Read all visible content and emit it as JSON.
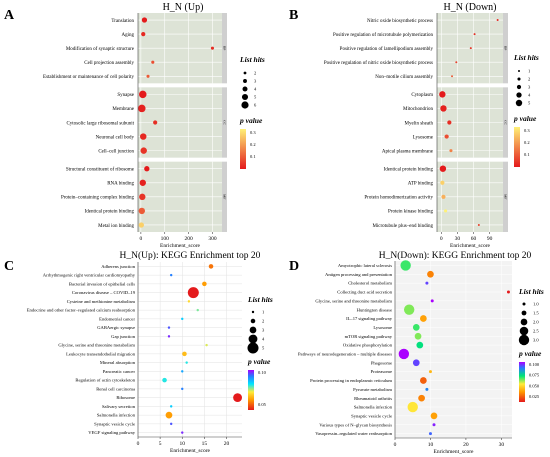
{
  "chart_data": [
    {
      "panel": "A",
      "type": "scatter",
      "title": "H_N (Up)",
      "xlabel": "Enrichment_score",
      "xticks": [
        0,
        100,
        200,
        300
      ],
      "xlim": [
        -12,
        340
      ],
      "legend": {
        "size_title": "List hits",
        "size_values": [
          2,
          3,
          4,
          5,
          6
        ],
        "color_title": "p value",
        "color_ticks": [
          "0.3",
          "0.2",
          "0.1"
        ],
        "color_low": "#e41a1c",
        "color_high": "#fff176"
      },
      "groups": [
        {
          "label": "BP",
          "terms": [
            {
              "term": "Translation",
              "x": 15,
              "hits": 4,
              "p": 0.02
            },
            {
              "term": "Aging",
              "x": 10,
              "hits": 3,
              "p": 0.04
            },
            {
              "term": "Modification of synaptic structure",
              "x": 300,
              "hits": 2,
              "p": 0.05
            },
            {
              "term": "Cell projection assembly",
              "x": 50,
              "hits": 2,
              "p": 0.1
            },
            {
              "term": "Establishment or maintenance of cell polarity",
              "x": 30,
              "hits": 2,
              "p": 0.12
            }
          ]
        },
        {
          "label": "CC",
          "terms": [
            {
              "term": "Synapse",
              "x": 8,
              "hits": 6,
              "p": 0.02
            },
            {
              "term": "Membrane",
              "x": 4,
              "hits": 6,
              "p": 0.03
            },
            {
              "term": "Cytosolic large ribosomal subunit",
              "x": 60,
              "hits": 3,
              "p": 0.05
            },
            {
              "term": "Neuronal cell body",
              "x": 10,
              "hits": 5,
              "p": 0.04
            },
            {
              "term": "Cell–cell junction",
              "x": 12,
              "hits": 5,
              "p": 0.06
            }
          ]
        },
        {
          "label": "MF",
          "terms": [
            {
              "term": "Structural constituent of ribosome",
              "x": 25,
              "hits": 4,
              "p": 0.02
            },
            {
              "term": "RNA binding",
              "x": 8,
              "hits": 5,
              "p": 0.03
            },
            {
              "term": "Protein–containing complex binding",
              "x": 6,
              "hits": 5,
              "p": 0.06
            },
            {
              "term": "Identical protein binding",
              "x": 4,
              "hits": 5,
              "p": 0.12
            },
            {
              "term": "Metal ion binding",
              "x": 2,
              "hits": 4,
              "p": 0.3
            }
          ]
        }
      ]
    },
    {
      "panel": "B",
      "type": "scatter",
      "title": "H_N (Down)",
      "xlabel": "Enrichment_score",
      "xticks": [
        0,
        30,
        60,
        90
      ],
      "xlim": [
        -8,
        115
      ],
      "legend": {
        "size_title": "List hits",
        "size_values": [
          1,
          2,
          3,
          4,
          5
        ],
        "color_title": "p value",
        "color_ticks": [
          "0.3",
          "0.2",
          "0.1"
        ],
        "color_low": "#e41a1c",
        "color_high": "#fff176"
      },
      "groups": [
        {
          "label": "BP",
          "terms": [
            {
              "term": "Nitric oxide biosynthetic process",
              "x": 105,
              "hits": 1,
              "p": 0.04
            },
            {
              "term": "Positive regulation of microtubule polymerization",
              "x": 62,
              "hits": 1,
              "p": 0.05
            },
            {
              "term": "Positive regulation of lamellipodium assembly",
              "x": 55,
              "hits": 1,
              "p": 0.06
            },
            {
              "term": "Positive regulation of nitric oxide biosynthetic process",
              "x": 28,
              "hits": 1,
              "p": 0.08
            },
            {
              "term": "Non–motile cilium assembly",
              "x": 20,
              "hits": 1,
              "p": 0.12
            }
          ]
        },
        {
          "label": "CC",
          "terms": [
            {
              "term": "Cytoplasm",
              "x": 2,
              "hits": 5,
              "p": 0.02
            },
            {
              "term": "Mitochondrion",
              "x": 4,
              "hits": 5,
              "p": 0.03
            },
            {
              "term": "Myelin sheath",
              "x": 15,
              "hits": 3,
              "p": 0.05
            },
            {
              "term": "Lysosome",
              "x": 10,
              "hits": 3,
              "p": 0.1
            },
            {
              "term": "Apical plasma membrane",
              "x": 18,
              "hits": 2,
              "p": 0.18
            }
          ]
        },
        {
          "label": "MF",
          "terms": [
            {
              "term": "Identical protein binding",
              "x": 3,
              "hits": 5,
              "p": 0.02
            },
            {
              "term": "ATP binding",
              "x": 2,
              "hits": 3,
              "p": 0.3
            },
            {
              "term": "Protein homodimerization activity",
              "x": 4,
              "hits": 3,
              "p": 0.25
            },
            {
              "term": "Protein kinase binding",
              "x": 8,
              "hits": 2,
              "p": 0.35
            },
            {
              "term": "Microtubule plus–end binding",
              "x": 70,
              "hits": 1,
              "p": 0.08
            }
          ]
        }
      ]
    },
    {
      "panel": "C",
      "type": "scatter",
      "title": "H_N(Up): KEGG Enrichment top 20",
      "xlabel": "Enrichment_score",
      "xticks": [
        0,
        5,
        10,
        15,
        20
      ],
      "xlim": [
        0,
        23.5
      ],
      "legend": {
        "size_title": "List hits",
        "size_values": [
          1,
          2,
          3,
          4,
          5
        ],
        "color_title": "p value",
        "color_ticks": [
          "0.10",
          "0.05"
        ],
        "color_stops": [
          "#e41a1c",
          "#ff9800",
          "#ffeb3b",
          "#00e5ff",
          "#2979ff",
          "#aa00ff"
        ]
      },
      "terms": [
        {
          "term": "Adherens junction",
          "x": 16.5,
          "hits": 2,
          "p": 0.03
        },
        {
          "term": "Arrhythmogenic right ventricular cardiomyopathy",
          "x": 7.5,
          "hits": 1,
          "p": 0.12
        },
        {
          "term": "Bacterial invasion of epithelial cells",
          "x": 15,
          "hits": 2,
          "p": 0.04
        },
        {
          "term": "Coronavirus disease – COVID–19",
          "x": 12.5,
          "hits": 5,
          "p": 0.01
        },
        {
          "term": "Cysteine and methionine metabolism",
          "x": 11.5,
          "hits": 1,
          "p": 0.06
        },
        {
          "term": "Endocrine and other factor–regulated calcium reabsorption",
          "x": 13.5,
          "hits": 1,
          "p": 0.08
        },
        {
          "term": "Endometrial cancer",
          "x": 10,
          "hits": 1,
          "p": 0.1
        },
        {
          "term": "GABAergic synapse",
          "x": 7,
          "hits": 1,
          "p": 0.13
        },
        {
          "term": "Gap junction",
          "x": 7,
          "hits": 1,
          "p": 0.14
        },
        {
          "term": "Glycine, serine and threonine metabolism",
          "x": 15.5,
          "hits": 1,
          "p": 0.07
        },
        {
          "term": "Leukocyte transendothelial migration",
          "x": 10.5,
          "hits": 2,
          "p": 0.05
        },
        {
          "term": "Mineral absorption",
          "x": 11,
          "hits": 1,
          "p": 0.09
        },
        {
          "term": "Pancreatic cancer",
          "x": 10,
          "hits": 1,
          "p": 0.11
        },
        {
          "term": "Regulation of actin cytoskeleton",
          "x": 6,
          "hits": 2,
          "p": 0.09
        },
        {
          "term": "Renal cell carcinoma",
          "x": 10,
          "hits": 1,
          "p": 0.12
        },
        {
          "term": "Ribosome",
          "x": 22.5,
          "hits": 4,
          "p": 0.01
        },
        {
          "term": "Salivary secretion",
          "x": 7.5,
          "hits": 1,
          "p": 0.1
        },
        {
          "term": "Salmonella infection",
          "x": 7,
          "hits": 3,
          "p": 0.04
        },
        {
          "term": "Synaptic vesicle cycle",
          "x": 7.5,
          "hits": 1,
          "p": 0.13
        },
        {
          "term": "VEGF signaling pathway",
          "x": 10,
          "hits": 1,
          "p": 0.14
        }
      ]
    },
    {
      "panel": "D",
      "type": "scatter",
      "title": "H_N(Down): KEGG Enrichment top 20",
      "xlabel": "Enrichment_score",
      "xticks": [
        0,
        10,
        20,
        30
      ],
      "xlim": [
        0,
        33
      ],
      "legend": {
        "size_title": "List hits",
        "size_values": [
          "1.0",
          "1.5",
          "2.0",
          "2.5",
          "3.0"
        ],
        "color_title": "p value",
        "color_ticks": [
          "0.100",
          "0.075",
          "0.050",
          "0.025"
        ],
        "color_stops": [
          "#e41a1c",
          "#ff9800",
          "#ffeb3b",
          "#00e676",
          "#2979ff",
          "#aa00ff"
        ]
      },
      "terms": [
        {
          "term": "Amyotrophic lateral sclerosis",
          "x": 3,
          "hits": 3,
          "p": 0.06
        },
        {
          "term": "Antigen processing and presentation",
          "x": 10,
          "hits": 2,
          "p": 0.025
        },
        {
          "term": "Cholesterol metabolism",
          "x": 9,
          "hits": 1,
          "p": 0.09
        },
        {
          "term": "Collecting duct acid secretion",
          "x": 32,
          "hits": 1,
          "p": 0.01
        },
        {
          "term": "Glycine, serine and threonine metabolism",
          "x": 10.5,
          "hits": 1,
          "p": 0.1
        },
        {
          "term": "Huntington disease",
          "x": 4,
          "hits": 3,
          "p": 0.055
        },
        {
          "term": "IL–17 signaling pathway",
          "x": 8,
          "hits": 2,
          "p": 0.03
        },
        {
          "term": "Lysosome",
          "x": 6,
          "hits": 2,
          "p": 0.06
        },
        {
          "term": "mTOR signaling pathway",
          "x": 6.5,
          "hits": 2,
          "p": 0.055
        },
        {
          "term": "Oxidative phosphorylation",
          "x": 7,
          "hits": 2,
          "p": 0.065
        },
        {
          "term": "Pathways of neurodegeneration – multiple diseases",
          "x": 2.5,
          "hits": 3,
          "p": 0.1
        },
        {
          "term": "Phagosome",
          "x": 6,
          "hits": 2,
          "p": 0.09
        },
        {
          "term": "Proteasome",
          "x": 10,
          "hits": 1,
          "p": 0.035
        },
        {
          "term": "Protein processing in endoplasmic reticulum",
          "x": 8,
          "hits": 2,
          "p": 0.02
        },
        {
          "term": "Pyruvate metabolism",
          "x": 9,
          "hits": 1,
          "p": 0.08
        },
        {
          "term": "Rheumatoid arthritis",
          "x": 7.5,
          "hits": 2,
          "p": 0.025
        },
        {
          "term": "Salmonella infection",
          "x": 5,
          "hits": 3,
          "p": 0.045
        },
        {
          "term": "Synaptic vesicle cycle",
          "x": 11,
          "hits": 2,
          "p": 0.03
        },
        {
          "term": "Various types of N–glycan biosynthesis",
          "x": 11,
          "hits": 1,
          "p": 0.095
        },
        {
          "term": "Vasopressin–regulated water reabsorption",
          "x": 10,
          "hits": 1,
          "p": 0.085
        }
      ]
    }
  ]
}
